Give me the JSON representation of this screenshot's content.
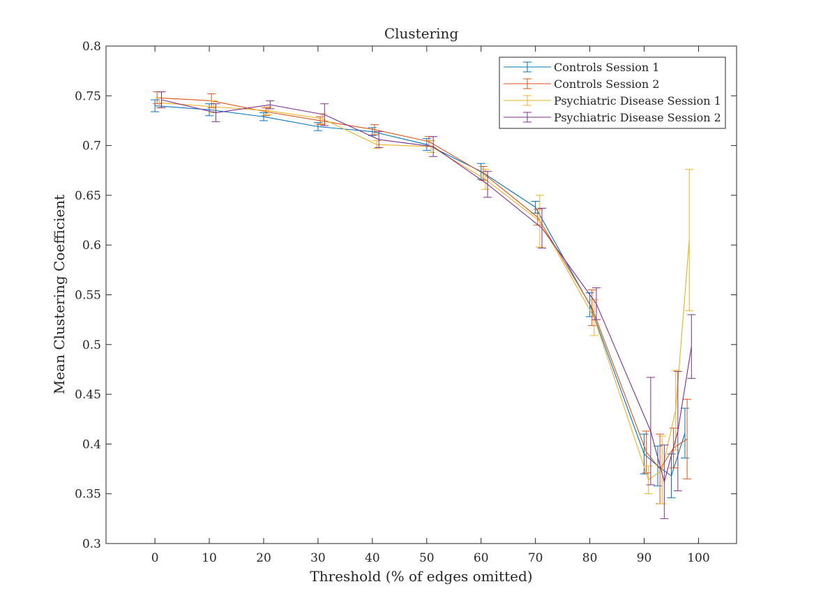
{
  "chart_data": {
    "type": "line",
    "title": "Clustering",
    "xlabel": "Threshold (% of edges omitted)",
    "ylabel": "Mean Clustering Coefficient",
    "xlim": [
      -9,
      107
    ],
    "ylim": [
      0.3,
      0.8
    ],
    "x_ticks": [
      0,
      10,
      20,
      30,
      40,
      50,
      60,
      70,
      80,
      90,
      100
    ],
    "y_ticks": [
      0.3,
      0.35,
      0.4,
      0.45,
      0.5,
      0.55,
      0.6,
      0.65,
      0.7,
      0.75,
      0.8
    ],
    "x_tick_labels": [
      "0",
      "10",
      "20",
      "30",
      "40",
      "50",
      "60",
      "70",
      "80",
      "90",
      "100"
    ],
    "y_tick_labels": [
      "0.3",
      "0.35",
      "0.4",
      "0.45",
      "0.5",
      "0.55",
      "0.6",
      "0.65",
      "0.7",
      "0.75",
      "0.8"
    ],
    "legend_position": "top-right",
    "grid": false,
    "x": [
      0,
      10,
      20,
      30,
      40,
      50,
      60,
      70,
      80,
      90,
      92.5,
      95,
      97.5
    ],
    "series": [
      {
        "name": "Controls Session 1",
        "color": "#0072BD",
        "values": [
          0.74,
          0.736,
          0.729,
          0.719,
          0.714,
          0.701,
          0.674,
          0.638,
          0.54,
          0.39,
          0.378,
          0.368,
          0.411
        ],
        "errors": [
          0.006,
          0.006,
          0.004,
          0.004,
          0.004,
          0.006,
          0.008,
          0.006,
          0.012,
          0.02,
          0.02,
          0.022,
          0.025
        ]
      },
      {
        "name": "Controls Session 2",
        "color": "#D95319",
        "values": [
          0.748,
          0.745,
          0.734,
          0.725,
          0.716,
          0.704,
          0.672,
          0.628,
          0.537,
          0.392,
          0.375,
          0.396,
          0.405
        ],
        "errors": [
          0.006,
          0.007,
          0.004,
          0.004,
          0.005,
          0.005,
          0.007,
          0.008,
          0.018,
          0.021,
          0.035,
          0.02,
          0.04
        ]
      },
      {
        "name": "Psychiatric Disease Session 1",
        "color": "#EDB120",
        "values": [
          0.743,
          0.739,
          0.735,
          0.727,
          0.701,
          0.699,
          0.666,
          0.624,
          0.527,
          0.364,
          0.374,
          0.434,
          0.605
        ],
        "errors": [
          0.005,
          0.006,
          0.004,
          0.005,
          0.004,
          0.006,
          0.01,
          0.026,
          0.018,
          0.014,
          0.034,
          0.04,
          0.071
        ]
      },
      {
        "name": "Psychiatric Disease Session 2",
        "color": "#7E2F8E",
        "values": [
          0.746,
          0.733,
          0.741,
          0.731,
          0.706,
          0.699,
          0.661,
          0.617,
          0.541,
          0.413,
          0.362,
          0.413,
          0.498
        ],
        "errors": [
          0.008,
          0.009,
          0.004,
          0.011,
          0.008,
          0.01,
          0.013,
          0.02,
          0.016,
          0.054,
          0.037,
          0.06,
          0.032
        ]
      }
    ]
  }
}
